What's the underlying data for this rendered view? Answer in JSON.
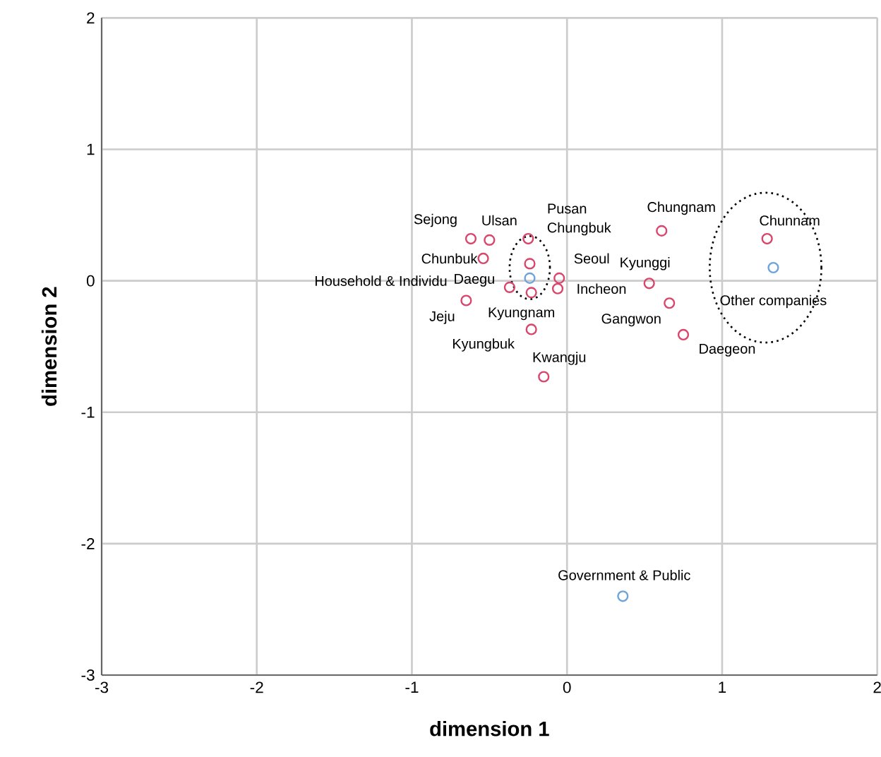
{
  "chart_data": {
    "type": "scatter",
    "xlabel": "dimension 1",
    "ylabel": "dimension 2",
    "xlim": [
      -3,
      2
    ],
    "ylim": [
      -3,
      2
    ],
    "xticks": [
      -3,
      -2,
      -1,
      0,
      1,
      2
    ],
    "yticks": [
      -3,
      -2,
      -1,
      0,
      1,
      2
    ],
    "grid": true,
    "marker": "circle",
    "series": [
      {
        "color": "#d9456b",
        "x": [
          -0.62,
          -0.5,
          -0.24,
          -0.25,
          -0.54,
          -0.05,
          -0.06,
          -0.37,
          -0.23,
          -0.65,
          -0.23,
          -0.15,
          0.61,
          1.29,
          0.53,
          0.66,
          0.75
        ],
        "values": [
          0.32,
          0.31,
          0.13,
          0.32,
          0.17,
          0.02,
          -0.06,
          -0.05,
          -0.09,
          -0.15,
          -0.37,
          -0.73,
          0.38,
          0.32,
          -0.02,
          -0.17,
          -0.41
        ]
      },
      {
        "color": "#6fa3dc",
        "x": [
          -0.24,
          1.33,
          0.36
        ],
        "values": [
          0.02,
          0.1,
          -2.4
        ]
      }
    ],
    "annotations": [
      {
        "text": "Sejong",
        "x": -0.62,
        "y": 0.32
      },
      {
        "text": "Ulsan",
        "x": -0.5,
        "y": 0.31
      },
      "Pusan",
      {
        "text": "Chungbuk",
        "x": -0.25,
        "y": 0.32
      },
      {
        "text": "Chunbuk",
        "x": -0.54,
        "y": 0.17
      },
      {
        "text": "Seoul",
        "x": -0.05,
        "y": 0.02
      },
      {
        "text": "Incheon",
        "x": -0.06,
        "y": -0.06
      },
      {
        "text": "Daegu",
        "x": -0.37,
        "y": -0.05
      },
      {
        "text": "Kyungnam",
        "x": -0.23,
        "y": -0.09
      },
      {
        "text": "Jeju",
        "x": -0.65,
        "y": -0.15
      },
      {
        "text": "Kyungbuk",
        "x": -0.23,
        "y": -0.37
      },
      {
        "text": "Kwangju",
        "x": -0.15,
        "y": -0.73
      },
      {
        "text": "Chungnam",
        "x": 0.61,
        "y": 0.38
      },
      {
        "text": "Chunnam",
        "x": 1.29,
        "y": 0.32
      },
      {
        "text": "Kyunggi",
        "x": 0.53,
        "y": -0.02
      },
      {
        "text": "Gangwon",
        "x": 0.66,
        "y": -0.17
      },
      {
        "text": "Daegeon",
        "x": 0.75,
        "y": -0.41
      },
      "Household & Individu",
      {
        "text": "Other companies",
        "x": 1.33,
        "y": 0.1
      },
      {
        "text": "Government & Public",
        "x": 0.36,
        "y": -2.4
      }
    ]
  }
}
